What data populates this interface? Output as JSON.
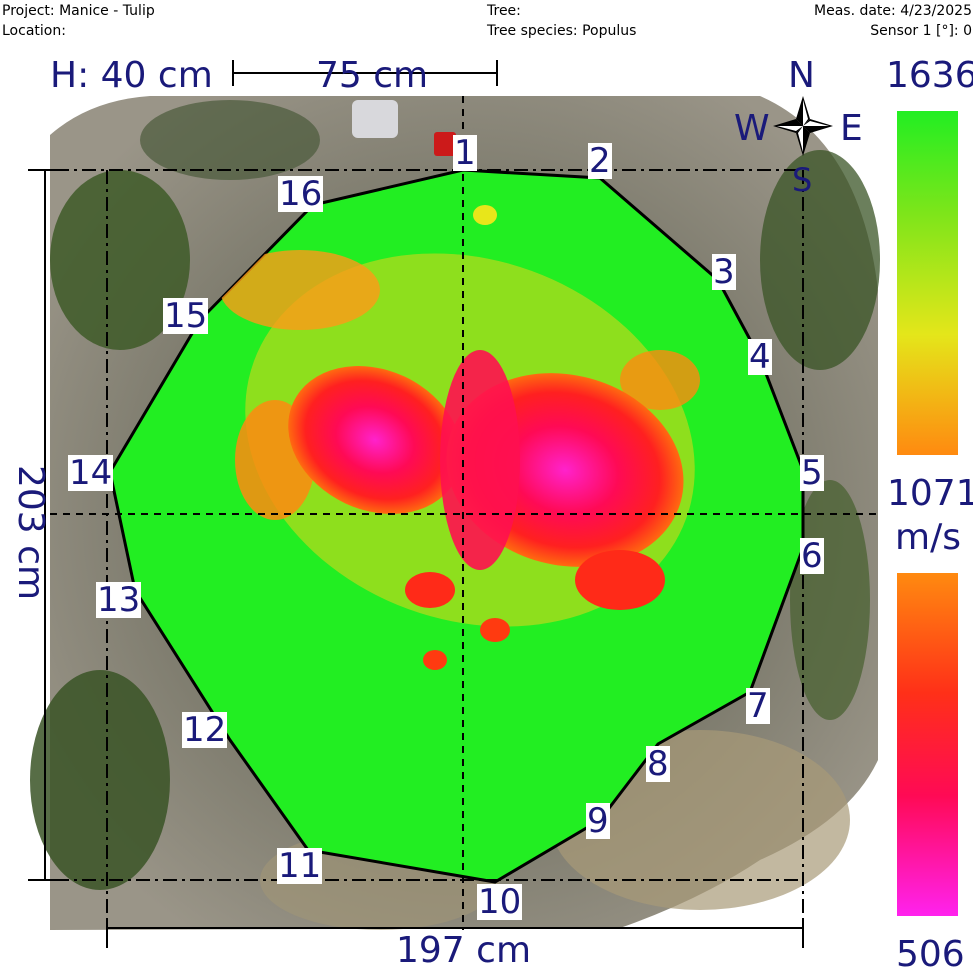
{
  "header": {
    "project": "Project: Manice - Tulip",
    "location": "Location:",
    "tree": "Tree:",
    "species": "Tree species: Populus",
    "meas_date": "Meas. date: 4/23/2025",
    "sensor": "Sensor 1 [°]: 0"
  },
  "measure": {
    "height": "H: 40 cm",
    "scale": "75 cm",
    "width": "197 cm",
    "depth": "203 cm"
  },
  "compass": {
    "n": "N",
    "e": "E",
    "s": "S",
    "w": "W"
  },
  "legend": {
    "max": "1636",
    "mid": "1071",
    "unit": "m/s",
    "min": "506",
    "colors": [
      "#22ee22",
      "#e4e61a",
      "#ff8a10",
      "#ff0000",
      "#ff22ee"
    ]
  },
  "sensors": [
    "1",
    "2",
    "3",
    "4",
    "5",
    "6",
    "7",
    "8",
    "9",
    "10",
    "11",
    "12",
    "13",
    "14",
    "15",
    "16"
  ]
}
